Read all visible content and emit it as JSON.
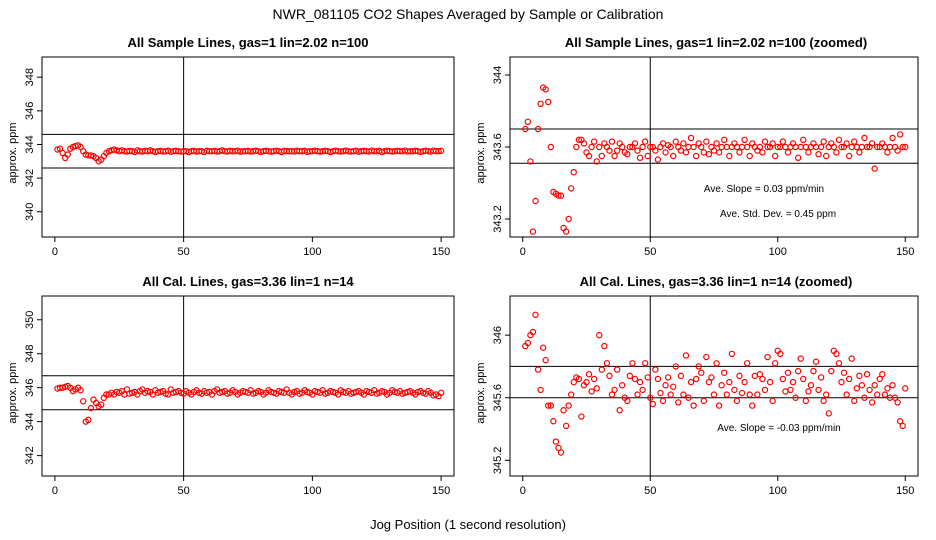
{
  "figure": {
    "title": "NWR_081105  CO2 Shapes Averaged by Sample or Calibration",
    "xlabel": "Jog Position (1 second resolution)"
  },
  "colors": {
    "points": "#ff0000",
    "axes": "#000000",
    "background": "#ffffff"
  },
  "chart_data": [
    {
      "type": "scatter",
      "title": "All Sample Lines, gas=1 lin=2.02 n=100",
      "ylabel": "approx. ppm",
      "xlim": [
        -5,
        155
      ],
      "ylim": [
        338.5,
        349.2
      ],
      "xticks": [
        0,
        50,
        100,
        150
      ],
      "yticks": [
        340,
        342,
        344,
        346,
        348
      ],
      "hlines": [
        344.6,
        342.6
      ],
      "vlines": [
        50
      ],
      "annotations": [],
      "x": [
        1,
        2,
        3,
        4,
        5,
        6,
        7,
        8,
        9,
        10,
        11,
        12,
        13,
        14,
        15,
        16,
        17,
        18,
        19,
        20,
        21,
        22,
        23,
        24,
        25,
        26,
        27,
        28,
        29,
        30,
        31,
        32,
        33,
        34,
        35,
        36,
        37,
        38,
        39,
        40,
        41,
        42,
        43,
        44,
        45,
        46,
        47,
        48,
        49,
        50,
        51,
        52,
        53,
        54,
        55,
        56,
        57,
        58,
        59,
        60,
        61,
        62,
        63,
        64,
        65,
        66,
        67,
        68,
        69,
        70,
        71,
        72,
        73,
        74,
        75,
        76,
        77,
        78,
        79,
        80,
        81,
        82,
        83,
        84,
        85,
        86,
        87,
        88,
        89,
        90,
        91,
        92,
        93,
        94,
        95,
        96,
        97,
        98,
        99,
        100,
        101,
        102,
        103,
        104,
        105,
        106,
        107,
        108,
        109,
        110,
        111,
        112,
        113,
        114,
        115,
        116,
        117,
        118,
        119,
        120,
        121,
        122,
        123,
        124,
        125,
        126,
        127,
        128,
        129,
        130,
        131,
        132,
        133,
        134,
        135,
        136,
        137,
        138,
        139,
        140,
        141,
        142,
        143,
        144,
        145,
        146,
        147,
        148,
        149,
        150
      ],
      "y": [
        343.7,
        343.75,
        343.5,
        343.2,
        343.4,
        343.75,
        343.85,
        343.9,
        343.95,
        343.85,
        343.6,
        343.4,
        343.35,
        343.35,
        343.3,
        343.2,
        343.0,
        343.1,
        343.3,
        343.5,
        343.6,
        343.65,
        343.7,
        343.65,
        343.6,
        343.65,
        343.6,
        343.58,
        343.62,
        343.6,
        343.55,
        343.65,
        343.6,
        343.58,
        343.62,
        343.6,
        343.65,
        343.6,
        343.55,
        343.6,
        343.62,
        343.58,
        343.6,
        343.63,
        343.57,
        343.6,
        343.62,
        343.6,
        343.58,
        343.6,
        343.6,
        343.55,
        343.6,
        343.62,
        343.58,
        343.6,
        343.6,
        343.55,
        343.63,
        343.6,
        343.6,
        343.62,
        343.58,
        343.6,
        343.65,
        343.6,
        343.58,
        343.62,
        343.6,
        343.6,
        343.63,
        343.57,
        343.6,
        343.6,
        343.62,
        343.58,
        343.6,
        343.63,
        343.6,
        343.56,
        343.6,
        343.62,
        343.6,
        343.58,
        343.6,
        343.63,
        343.6,
        343.55,
        343.62,
        343.6,
        343.6,
        343.6,
        343.58,
        343.63,
        343.6,
        343.6,
        343.62,
        343.56,
        343.6,
        343.6,
        343.63,
        343.6,
        343.58,
        343.6,
        343.62,
        343.6,
        343.55,
        343.6,
        343.63,
        343.6,
        343.58,
        343.6,
        343.64,
        343.6,
        343.58,
        343.6,
        343.63,
        343.57,
        343.6,
        343.62,
        343.6,
        343.58,
        343.64,
        343.6,
        343.6,
        343.62,
        343.55,
        343.6,
        343.63,
        343.6,
        343.58,
        343.6,
        343.62,
        343.6,
        343.6,
        343.64,
        343.58,
        343.6,
        343.6,
        343.62,
        343.6,
        343.56,
        343.6,
        343.63,
        343.6,
        343.58,
        343.64,
        343.6,
        343.6,
        343.62
      ]
    },
    {
      "type": "scatter",
      "title": "All Sample Lines, gas=1 lin=2.02 n=100 (zoomed)",
      "ylabel": "approx. ppm",
      "xlim": [
        -5,
        155
      ],
      "ylim": [
        343.1,
        344.1
      ],
      "xticks": [
        0,
        50,
        100,
        150
      ],
      "yticks": [
        343.2,
        343.6,
        344.0
      ],
      "hlines": [
        343.7,
        343.51
      ],
      "vlines": [
        50
      ],
      "annotations": [
        "Ave. Slope =  0.03  ppm/min",
        "Ave. Std. Dev. =  0.45  ppm"
      ],
      "x": [
        1,
        2,
        3,
        4,
        5,
        6,
        7,
        8,
        9,
        10,
        11,
        12,
        13,
        14,
        15,
        16,
        17,
        18,
        19,
        20,
        21,
        22,
        23,
        24,
        25,
        26,
        27,
        28,
        29,
        30,
        31,
        32,
        33,
        34,
        35,
        36,
        37,
        38,
        39,
        40,
        41,
        42,
        43,
        44,
        45,
        46,
        47,
        48,
        49,
        50,
        51,
        52,
        53,
        54,
        55,
        56,
        57,
        58,
        59,
        60,
        61,
        62,
        63,
        64,
        65,
        66,
        67,
        68,
        69,
        70,
        71,
        72,
        73,
        74,
        75,
        76,
        77,
        78,
        79,
        80,
        81,
        82,
        83,
        84,
        85,
        86,
        87,
        88,
        89,
        90,
        91,
        92,
        93,
        94,
        95,
        96,
        97,
        98,
        99,
        100,
        101,
        102,
        103,
        104,
        105,
        106,
        107,
        108,
        109,
        110,
        111,
        112,
        113,
        114,
        115,
        116,
        117,
        118,
        119,
        120,
        121,
        122,
        123,
        124,
        125,
        126,
        127,
        128,
        129,
        130,
        131,
        132,
        133,
        134,
        135,
        136,
        137,
        138,
        139,
        140,
        141,
        142,
        143,
        144,
        145,
        146,
        147,
        148,
        149,
        150
      ],
      "y": [
        343.7,
        343.74,
        343.52,
        343.13,
        343.3,
        343.7,
        343.84,
        343.93,
        343.92,
        343.85,
        343.6,
        343.35,
        343.34,
        343.33,
        343.33,
        343.15,
        343.13,
        343.2,
        343.37,
        343.46,
        343.6,
        343.64,
        343.64,
        343.62,
        343.57,
        343.55,
        343.6,
        343.63,
        343.52,
        343.6,
        343.55,
        343.62,
        343.6,
        343.58,
        343.63,
        343.55,
        343.58,
        343.62,
        343.6,
        343.57,
        343.56,
        343.6,
        343.6,
        343.62,
        343.58,
        343.54,
        343.6,
        343.63,
        343.55,
        343.6,
        343.6,
        343.58,
        343.53,
        343.6,
        343.62,
        343.57,
        343.61,
        343.6,
        343.55,
        343.63,
        343.6,
        343.58,
        343.62,
        343.57,
        343.6,
        343.65,
        343.6,
        343.55,
        343.62,
        343.6,
        343.57,
        343.63,
        343.56,
        343.6,
        343.58,
        343.62,
        343.57,
        343.6,
        343.64,
        343.6,
        343.55,
        343.6,
        343.62,
        343.6,
        343.57,
        343.6,
        343.64,
        343.6,
        343.55,
        343.62,
        343.6,
        343.58,
        343.6,
        343.57,
        343.63,
        343.6,
        343.6,
        343.62,
        343.55,
        343.6,
        343.6,
        343.63,
        343.6,
        343.57,
        343.6,
        343.62,
        343.6,
        343.54,
        343.6,
        343.64,
        343.6,
        343.57,
        343.6,
        343.62,
        343.6,
        343.56,
        343.6,
        343.63,
        343.55,
        343.6,
        343.62,
        343.6,
        343.57,
        343.64,
        343.6,
        343.6,
        343.62,
        343.55,
        343.6,
        343.63,
        343.6,
        343.57,
        343.6,
        343.65,
        343.6,
        343.6,
        343.62,
        343.48,
        343.6,
        343.6,
        343.62,
        343.6,
        343.57,
        343.6,
        343.65,
        343.6,
        343.58,
        343.67,
        343.6,
        343.6
      ]
    },
    {
      "type": "scatter",
      "title": "All Cal. Lines, gas=3.36 lin=1 n=14",
      "ylabel": "approx. ppm",
      "xlim": [
        -5,
        155
      ],
      "ylim": [
        340.8,
        351.4
      ],
      "xticks": [
        0,
        50,
        100,
        150
      ],
      "yticks": [
        342,
        344,
        346,
        348,
        350
      ],
      "hlines": [
        346.7,
        344.7
      ],
      "vlines": [
        50
      ],
      "annotations": [],
      "x": [
        1,
        2,
        3,
        4,
        5,
        6,
        7,
        8,
        9,
        10,
        11,
        12,
        13,
        14,
        15,
        16,
        17,
        18,
        19,
        20,
        21,
        22,
        23,
        24,
        25,
        26,
        27,
        28,
        29,
        30,
        31,
        32,
        33,
        34,
        35,
        36,
        37,
        38,
        39,
        40,
        41,
        42,
        43,
        44,
        45,
        46,
        47,
        48,
        49,
        50,
        51,
        52,
        53,
        54,
        55,
        56,
        57,
        58,
        59,
        60,
        61,
        62,
        63,
        64,
        65,
        66,
        67,
        68,
        69,
        70,
        71,
        72,
        73,
        74,
        75,
        76,
        77,
        78,
        79,
        80,
        81,
        82,
        83,
        84,
        85,
        86,
        87,
        88,
        89,
        90,
        91,
        92,
        93,
        94,
        95,
        96,
        97,
        98,
        99,
        100,
        101,
        102,
        103,
        104,
        105,
        106,
        107,
        108,
        109,
        110,
        111,
        112,
        113,
        114,
        115,
        116,
        117,
        118,
        119,
        120,
        121,
        122,
        123,
        124,
        125,
        126,
        127,
        128,
        129,
        130,
        131,
        132,
        133,
        134,
        135,
        136,
        137,
        138,
        139,
        140,
        141,
        142,
        143,
        144,
        145,
        146,
        147,
        148,
        149,
        150
      ],
      "y": [
        345.95,
        346.0,
        346.0,
        346.05,
        346.1,
        346.0,
        345.8,
        345.9,
        346.0,
        345.85,
        345.2,
        344.0,
        344.1,
        344.8,
        345.3,
        345.1,
        344.9,
        345.0,
        345.4,
        345.6,
        345.6,
        345.7,
        345.6,
        345.75,
        345.7,
        345.8,
        345.6,
        345.9,
        345.65,
        345.7,
        345.75,
        345.6,
        345.8,
        345.9,
        345.7,
        345.8,
        345.75,
        345.6,
        345.85,
        345.7,
        345.75,
        345.8,
        345.65,
        345.6,
        345.9,
        345.7,
        345.75,
        345.8,
        345.7,
        345.65,
        345.8,
        345.7,
        345.6,
        345.75,
        345.85,
        345.7,
        345.65,
        345.8,
        345.7,
        345.75,
        345.6,
        345.8,
        345.9,
        345.7,
        345.75,
        345.8,
        345.65,
        345.7,
        345.85,
        345.75,
        345.6,
        345.7,
        345.8,
        345.75,
        345.7,
        345.85,
        345.65,
        345.7,
        345.8,
        345.75,
        345.6,
        345.7,
        345.85,
        345.75,
        345.7,
        345.65,
        345.8,
        345.75,
        345.7,
        345.9,
        345.7,
        345.6,
        345.75,
        345.8,
        345.65,
        345.7,
        345.85,
        345.75,
        345.7,
        345.6,
        345.8,
        345.75,
        345.7,
        345.85,
        345.65,
        345.7,
        345.8,
        345.75,
        345.7,
        345.6,
        345.85,
        345.75,
        345.7,
        345.8,
        345.65,
        345.7,
        345.75,
        345.8,
        345.7,
        345.6,
        345.8,
        345.75,
        345.7,
        345.85,
        345.65,
        345.7,
        345.8,
        345.75,
        345.6,
        345.7,
        345.85,
        345.75,
        345.7,
        345.8,
        345.65,
        345.7,
        345.75,
        345.8,
        345.7,
        345.6,
        345.75,
        345.8,
        345.7,
        345.65,
        345.8,
        345.7,
        345.55,
        345.6,
        345.5,
        345.7
      ]
    },
    {
      "type": "scatter",
      "title": "All Cal. Lines, gas=3.36 lin=1 n=14 (zoomed)",
      "ylabel": "approx. ppm",
      "xlim": [
        -5,
        155
      ],
      "ylim": [
        345.1,
        346.25
      ],
      "xticks": [
        0,
        50,
        100,
        150
      ],
      "yticks": [
        345.2,
        345.6,
        346.0
      ],
      "hlines": [
        345.8,
        345.6
      ],
      "vlines": [
        50
      ],
      "annotations": [
        "Ave. Slope = -0.03  ppm/min"
      ],
      "x": [
        1,
        2,
        3,
        4,
        5,
        6,
        7,
        8,
        9,
        10,
        11,
        12,
        13,
        14,
        15,
        16,
        17,
        18,
        19,
        20,
        21,
        22,
        23,
        24,
        25,
        26,
        27,
        28,
        29,
        30,
        31,
        32,
        33,
        34,
        35,
        36,
        37,
        38,
        39,
        40,
        41,
        42,
        43,
        44,
        45,
        46,
        47,
        48,
        49,
        50,
        51,
        52,
        53,
        54,
        55,
        56,
        57,
        58,
        59,
        60,
        61,
        62,
        63,
        64,
        65,
        66,
        67,
        68,
        69,
        70,
        71,
        72,
        73,
        74,
        75,
        76,
        77,
        78,
        79,
        80,
        81,
        82,
        83,
        84,
        85,
        86,
        87,
        88,
        89,
        90,
        91,
        92,
        93,
        94,
        95,
        96,
        97,
        98,
        99,
        100,
        101,
        102,
        103,
        104,
        105,
        106,
        107,
        108,
        109,
        110,
        111,
        112,
        113,
        114,
        115,
        116,
        117,
        118,
        119,
        120,
        121,
        122,
        123,
        124,
        125,
        126,
        127,
        128,
        129,
        130,
        131,
        132,
        133,
        134,
        135,
        136,
        137,
        138,
        139,
        140,
        141,
        142,
        143,
        144,
        145,
        146,
        147,
        148,
        149,
        150
      ],
      "y": [
        345.93,
        345.95,
        346.0,
        346.02,
        346.13,
        345.78,
        345.65,
        345.92,
        345.84,
        345.55,
        345.55,
        345.45,
        345.32,
        345.28,
        345.25,
        345.52,
        345.42,
        345.55,
        345.62,
        345.7,
        345.73,
        345.72,
        345.48,
        345.68,
        345.7,
        345.75,
        345.64,
        345.72,
        345.66,
        346.0,
        345.78,
        345.93,
        345.82,
        345.74,
        345.62,
        345.65,
        345.78,
        345.52,
        345.68,
        345.6,
        345.58,
        345.74,
        345.82,
        345.72,
        345.62,
        345.7,
        345.65,
        345.82,
        345.73,
        345.6,
        345.56,
        345.78,
        345.72,
        345.63,
        345.58,
        345.68,
        345.73,
        345.62,
        345.67,
        345.8,
        345.57,
        345.74,
        345.62,
        345.87,
        345.6,
        345.7,
        345.55,
        345.72,
        345.8,
        345.76,
        345.58,
        345.86,
        345.7,
        345.73,
        345.62,
        345.82,
        345.55,
        345.68,
        345.76,
        345.62,
        345.7,
        345.88,
        345.65,
        345.58,
        345.74,
        345.63,
        345.7,
        345.82,
        345.62,
        345.55,
        345.74,
        345.62,
        345.75,
        345.72,
        345.65,
        345.86,
        345.7,
        345.58,
        345.82,
        345.9,
        345.88,
        345.72,
        345.64,
        345.76,
        345.65,
        345.7,
        345.6,
        345.77,
        345.85,
        345.72,
        345.58,
        345.64,
        345.68,
        345.77,
        345.83,
        345.65,
        345.73,
        345.58,
        345.62,
        345.5,
        345.77,
        345.9,
        345.88,
        345.82,
        345.7,
        345.76,
        345.62,
        345.72,
        345.85,
        345.58,
        345.66,
        345.74,
        345.68,
        345.6,
        345.75,
        345.65,
        345.57,
        345.68,
        345.62,
        345.72,
        345.75,
        345.62,
        345.66,
        345.6,
        345.68,
        345.6,
        345.57,
        345.45,
        345.42,
        345.66
      ]
    }
  ]
}
